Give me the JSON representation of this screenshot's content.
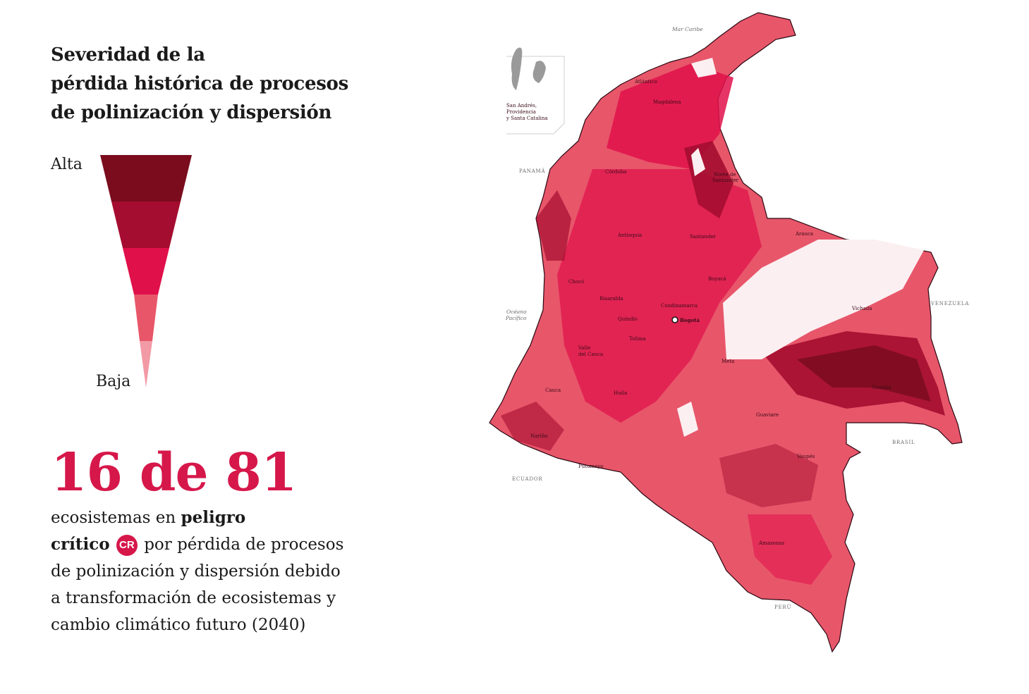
{
  "title": {
    "line1": "Severidad de la",
    "line2": "pérdida histórica de procesos",
    "line3": "de polinización y dispersión"
  },
  "legend": {
    "high_label": "Alta",
    "low_label": "Baja",
    "colors": [
      "#7a0c1e",
      "#a50d30",
      "#e0104a",
      "#e8566a",
      "#f29aa5"
    ]
  },
  "stat": {
    "number": "16 de 81",
    "line1_a": "ecosistemas en ",
    "line1_b": "peligro",
    "line2_a": "crítico",
    "badge": "CR",
    "line2_b": " por pérdida de procesos",
    "line3": "de polinización y dispersión debido",
    "line4": "a transformación de ecosistemas y",
    "line5": "cambio climático futuro (2040)"
  },
  "map": {
    "sea": "Mar Caribe",
    "ocean_1": "Océano",
    "ocean_2": "Pacífico",
    "inset_1": "San Andrés,",
    "inset_2": "Providencia",
    "inset_3": "y Santa Catalina",
    "countries": {
      "panama": "PANAMÁ",
      "venezuela": "VENEZUELA",
      "brasil": "BRASIL",
      "ecuador": "ECUADOR",
      "peru": "PERÚ"
    },
    "departments": {
      "atlantico": "Atlántico",
      "magdalena": "Magdalena",
      "cordoba": "Córdoba",
      "norte_santander_1": "Norte de",
      "norte_santander_2": "Santander",
      "antioquia": "Antioquia",
      "santander": "Santander",
      "arauca": "Arauca",
      "boyaca": "Boyacá",
      "choco": "Chocó",
      "risaralda": "Risaralda",
      "cundinamarca": "Cundinamarca",
      "bogota": "Bogotá",
      "vichada": "Vichada",
      "quindio": "Quindío",
      "tolima": "Tolima",
      "valle_1": "Valle",
      "valle_2": "del Cauca",
      "meta": "Meta",
      "guainia": "Guainía",
      "cauca": "Cauca",
      "huila": "Huila",
      "narino": "Nariño",
      "guaviare": "Guaviare",
      "putumayo": "Putumayo",
      "vaupes": "Vaupés",
      "amazonas": "Amazonas"
    },
    "colors": {
      "base": "#e8566a",
      "mid": "#e0104a",
      "dark": "#a50d30",
      "darkest": "#7a0c1e",
      "light": "#f29aa5",
      "white_area": "#fbeff1",
      "inset_gray": "#9a9a9a"
    }
  }
}
